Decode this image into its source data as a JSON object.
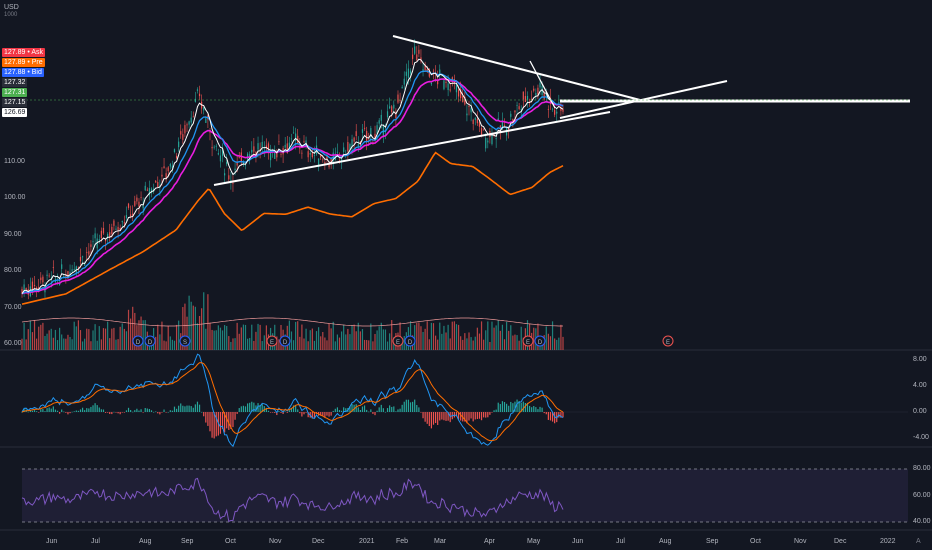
{
  "header": {
    "currency": "USD",
    "unit": "1000"
  },
  "price_axis": {
    "ticks": [
      "110.00",
      "100.00",
      "90.00",
      "80.00",
      "70.00",
      "60.00"
    ],
    "tick_values": [
      110,
      100,
      90,
      80,
      70,
      60
    ],
    "labels": [
      {
        "value": "127.89",
        "tag": "Ask",
        "color": "#f23645",
        "price": 127.89
      },
      {
        "value": "127.89",
        "tag": "Pre",
        "color": "#ff6d00",
        "price": 127.89
      },
      {
        "value": "127.88",
        "tag": "Bid",
        "color": "#2962ff",
        "price": 127.88
      },
      {
        "value": "127.32",
        "tag": "",
        "color": "#2a2e39",
        "price": 127.32
      },
      {
        "value": "127.31",
        "tag": "",
        "color": "#4caf50",
        "price": 127.31
      },
      {
        "value": "127.15",
        "tag": "",
        "color": "#2a2e39",
        "price": 127.15
      },
      {
        "value": "126.69",
        "tag": "",
        "color": "#ffffff",
        "price": 126.69
      }
    ]
  },
  "macd_axis": {
    "ticks": [
      "8.00",
      "4.00",
      "0.00",
      "-4.00"
    ],
    "tick_values": [
      8,
      4,
      0,
      -4
    ]
  },
  "rsi_axis": {
    "ticks": [
      "80.00",
      "60.00",
      "40.00"
    ],
    "tick_values": [
      80,
      60,
      40
    ]
  },
  "time_axis": {
    "labels": [
      "Jun",
      "Jul",
      "Aug",
      "Sep",
      "Oct",
      "Nov",
      "Dec",
      "2021",
      "Feb",
      "Mar",
      "Apr",
      "May",
      "Jun",
      "Jul",
      "Aug",
      "Sep",
      "Oct",
      "Nov",
      "Dec",
      "2022"
    ]
  },
  "events": {
    "earnings": "E",
    "dividend": "D",
    "split": "S"
  },
  "colors": {
    "bg": "#131722",
    "up": "#26a69a",
    "down": "#ef5350",
    "ema_fast": "#ffffff",
    "ema_mid": "#2196f3",
    "ema_slow": "#e91ee0",
    "sma_long": "#ff6d00",
    "rsi": "#7e57c2",
    "grid": "#1e222d"
  },
  "corner_button": "A"
}
